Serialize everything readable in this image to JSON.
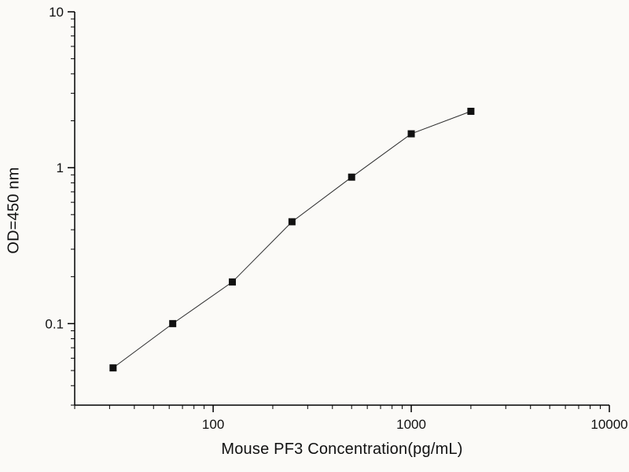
{
  "chart_data": {
    "type": "scatter",
    "title": "",
    "xlabel": "Mouse PF3 Concentration(pg/mL)",
    "ylabel": "OD=450 nm",
    "xscale": "log",
    "yscale": "log",
    "xlim": [
      20,
      10000
    ],
    "ylim": [
      0.03,
      10
    ],
    "x": [
      31.25,
      62.5,
      125,
      250,
      500,
      1000,
      2000
    ],
    "y": [
      0.052,
      0.1,
      0.185,
      0.45,
      0.87,
      1.65,
      2.3
    ],
    "x_major_ticks": [
      100,
      1000,
      10000
    ],
    "x_tick_labels": [
      "100",
      "1000",
      "10000"
    ],
    "y_major_ticks": [
      0.1,
      1,
      10
    ],
    "y_tick_labels": [
      "0.1",
      "1",
      "10"
    ],
    "marker": "filled-square",
    "line_between_points": true,
    "grid": false,
    "legend": "none",
    "colors": {
      "marker": "#111111",
      "line": "#2b2b2b",
      "axis": "#000000",
      "background": "#fbfaf7"
    }
  }
}
